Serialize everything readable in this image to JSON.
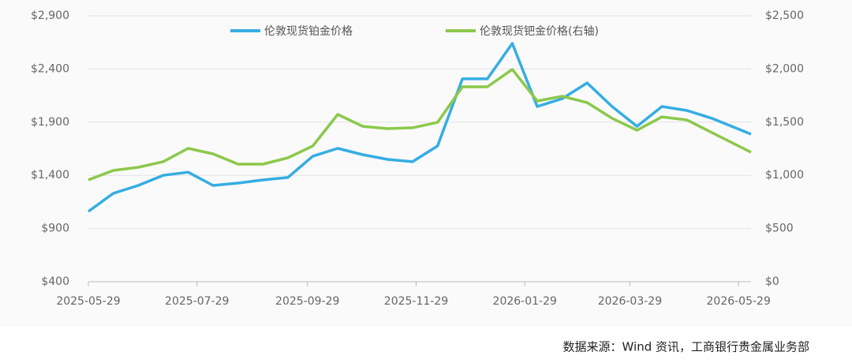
{
  "chart_data": {
    "type": "line",
    "x": [
      "2025-05-29",
      "2025-06-12",
      "2025-06-26",
      "2025-07-10",
      "2025-07-24",
      "2025-08-07",
      "2025-08-21",
      "2025-09-04",
      "2025-09-18",
      "2025-10-02",
      "2025-10-16",
      "2025-10-30",
      "2025-11-13",
      "2025-11-27",
      "2025-12-11",
      "2025-12-25",
      "2026-01-08",
      "2026-01-22",
      "2026-02-05",
      "2026-02-19",
      "2026-03-05",
      "2026-03-19",
      "2026-04-02",
      "2026-04-16",
      "2026-04-30",
      "2026-05-14",
      "2026-06-05"
    ],
    "series": [
      {
        "name": "伦敦现货铂金价格",
        "color": "#35ade3",
        "axis": "y",
        "values": [
          1060,
          1231,
          1305,
          1400,
          1430,
          1305,
          1327,
          1357,
          1380,
          1580,
          1654,
          1594,
          1550,
          1528,
          1676,
          2307,
          2307,
          2640,
          2047,
          2121,
          2269,
          2047,
          1861,
          2047,
          2010,
          1936,
          1787
        ]
      },
      {
        "name": "伦敦现货钯金价格(右轴)",
        "color": "#8cc84b",
        "axis": "y2",
        "values": [
          957,
          1046,
          1076,
          1128,
          1254,
          1202,
          1105,
          1105,
          1165,
          1276,
          1573,
          1461,
          1439,
          1447,
          1498,
          1832,
          1832,
          1996,
          1699,
          1743,
          1684,
          1536,
          1424,
          1550,
          1521,
          1402,
          1217
        ]
      }
    ],
    "xlim": [
      "2025-05-29",
      "2026-06-05"
    ],
    "xticks": [
      "2025-05-29",
      "2025-07-29",
      "2025-09-29",
      "2025-11-29",
      "2026-01-29",
      "2026-03-29",
      "2026-05-29"
    ],
    "ylim": [
      400,
      2900
    ],
    "yticks": [
      {
        "value": 400,
        "label": "$400"
      },
      {
        "value": 900,
        "label": "$900"
      },
      {
        "value": 1400,
        "label": "$1,400"
      },
      {
        "value": 1900,
        "label": "$1,900"
      },
      {
        "value": 2400,
        "label": "$2,400"
      },
      {
        "value": 2900,
        "label": "$2,900"
      }
    ],
    "y2lim": [
      0,
      2500
    ],
    "y2ticks": [
      {
        "value": 0,
        "label": "$0"
      },
      {
        "value": 500,
        "label": "$500"
      },
      {
        "value": 1000,
        "label": "$1,000"
      },
      {
        "value": 1500,
        "label": "$1,500"
      },
      {
        "value": 2000,
        "label": "$2,000"
      },
      {
        "value": 2500,
        "label": "$2,500"
      }
    ],
    "grid": true,
    "legend": "top",
    "source": "数据来源：Wind 资讯，工商银行贵金属业务部"
  }
}
